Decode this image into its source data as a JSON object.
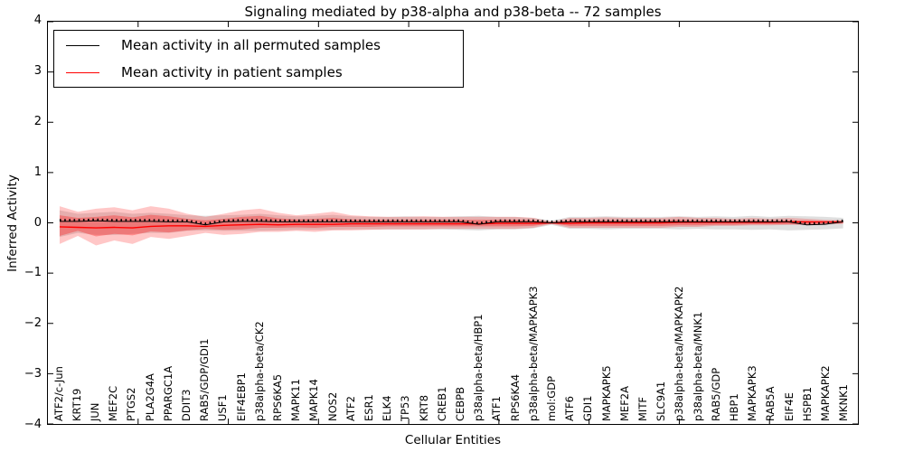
{
  "chart_data": {
    "type": "line",
    "title": "Signaling mediated by p38-alpha and p38-beta -- 72 samples",
    "xlabel": "Cellular Entities",
    "ylabel": "Inferred Activity",
    "ylim": [
      -4,
      4
    ],
    "yticks": [
      "4",
      "3",
      "2",
      "1",
      "0",
      "−1",
      "−2",
      "−3",
      "−4"
    ],
    "ytick_values": [
      4,
      3,
      2,
      1,
      0,
      -1,
      -2,
      -3,
      -4
    ],
    "grid": false,
    "legend_position": "upper left",
    "categories": [
      "ATF2/c-Jun",
      "KRT19",
      "JUN",
      "MEF2C",
      "PTGS2",
      "PLA2G4A",
      "PPARGC1A",
      "DDIT3",
      "RAB5/GDP/GDI1",
      "USF1",
      "EIF4EBP1",
      "p38alpha-beta/CK2",
      "RPS6KA5",
      "MAPK11",
      "MAPK14",
      "NOS2",
      "ATF2",
      "ESR1",
      "ELK4",
      "TP53",
      "KRT8",
      "CREB1",
      "CEBPB",
      "p38alpha-beta/HBP1",
      "ATF1",
      "RPS6KA4",
      "p38alpha-beta/MAPKAPK3",
      "mol:GDP",
      "ATF6",
      "GDI1",
      "MAPKAPK5",
      "MEF2A",
      "MITF",
      "SLC9A1",
      "p38alpha-beta/MAPKAPK2",
      "p38alpha-beta/MNK1",
      "RAB5/GDP",
      "HBP1",
      "MAPKAPK3",
      "RAB5A",
      "EIF4E",
      "HSPB1",
      "MAPKAPK2",
      "MKNK1"
    ],
    "series": [
      {
        "name": "Mean activity in all permuted samples",
        "color": "#000000",
        "values": [
          0.03,
          0.03,
          0.04,
          0.03,
          0.03,
          0.03,
          0.02,
          0.02,
          -0.04,
          0.02,
          0.03,
          0.03,
          0.02,
          0.02,
          0.02,
          0.02,
          0.02,
          0.02,
          0.02,
          0.02,
          0.02,
          0.02,
          0.02,
          -0.03,
          0.02,
          0.02,
          0.02,
          0.0,
          0.02,
          0.02,
          0.02,
          0.02,
          0.02,
          0.02,
          0.02,
          0.02,
          0.02,
          0.02,
          0.02,
          0.02,
          0.02,
          -0.04,
          -0.03,
          0.02
        ]
      },
      {
        "name": "Mean activity in patient samples",
        "color": "#ff0000",
        "values": [
          -0.08,
          -0.09,
          -0.1,
          -0.09,
          -0.1,
          -0.07,
          -0.06,
          -0.06,
          -0.07,
          -0.05,
          -0.04,
          -0.03,
          -0.04,
          -0.03,
          -0.03,
          -0.03,
          -0.02,
          -0.02,
          -0.02,
          -0.02,
          -0.02,
          -0.02,
          -0.02,
          -0.02,
          -0.01,
          -0.01,
          -0.01,
          0.0,
          -0.01,
          0.0,
          0.0,
          0.0,
          0.0,
          0.0,
          0.01,
          0.01,
          0.01,
          0.01,
          0.01,
          0.01,
          0.02,
          0.02,
          0.02,
          0.02
        ]
      }
    ],
    "bands": [
      {
        "name": "permuted-samples-spread",
        "fill": "#d9d9d9",
        "opacity": 0.85,
        "upper": [
          0.25,
          0.18,
          0.2,
          0.22,
          0.18,
          0.2,
          0.18,
          0.15,
          0.14,
          0.15,
          0.16,
          0.18,
          0.15,
          0.13,
          0.14,
          0.16,
          0.13,
          0.12,
          0.12,
          0.13,
          0.12,
          0.12,
          0.13,
          0.14,
          0.12,
          0.12,
          0.1,
          0.04,
          0.12,
          0.12,
          0.13,
          0.12,
          0.12,
          0.12,
          0.13,
          0.12,
          0.13,
          0.12,
          0.14,
          0.12,
          0.14,
          0.13,
          0.12,
          0.1
        ],
        "lower": [
          -0.28,
          -0.2,
          -0.24,
          -0.24,
          -0.22,
          -0.2,
          -0.2,
          -0.16,
          -0.15,
          -0.16,
          -0.16,
          -0.16,
          -0.15,
          -0.14,
          -0.14,
          -0.14,
          -0.13,
          -0.13,
          -0.13,
          -0.13,
          -0.13,
          -0.13,
          -0.14,
          -0.15,
          -0.13,
          -0.13,
          -0.11,
          -0.04,
          -0.12,
          -0.12,
          -0.13,
          -0.12,
          -0.12,
          -0.12,
          -0.13,
          -0.12,
          -0.13,
          -0.13,
          -0.14,
          -0.13,
          -0.15,
          -0.14,
          -0.13,
          -0.11
        ]
      },
      {
        "name": "patient-samples-outer-spread",
        "fill": "#ff0000",
        "opacity": 0.22,
        "upper": [
          0.33,
          0.22,
          0.28,
          0.31,
          0.25,
          0.33,
          0.28,
          0.18,
          0.12,
          0.18,
          0.25,
          0.28,
          0.2,
          0.15,
          0.18,
          0.22,
          0.15,
          0.13,
          0.12,
          0.12,
          0.13,
          0.12,
          0.12,
          0.12,
          0.12,
          0.12,
          0.1,
          0.02,
          0.1,
          0.1,
          0.11,
          0.1,
          0.1,
          0.1,
          0.12,
          0.1,
          0.1,
          0.08,
          0.1,
          0.08,
          0.1,
          0.08,
          0.06,
          0.05
        ],
        "lower": [
          -0.42,
          -0.26,
          -0.45,
          -0.35,
          -0.42,
          -0.28,
          -0.32,
          -0.26,
          -0.2,
          -0.24,
          -0.22,
          -0.18,
          -0.18,
          -0.16,
          -0.18,
          -0.15,
          -0.15,
          -0.14,
          -0.13,
          -0.13,
          -0.13,
          -0.12,
          -0.12,
          -0.12,
          -0.12,
          -0.12,
          -0.1,
          -0.02,
          -0.1,
          -0.1,
          -0.1,
          -0.1,
          -0.1,
          -0.1,
          -0.08,
          -0.08,
          -0.06,
          -0.06,
          -0.05,
          -0.05,
          -0.04,
          -0.04,
          -0.03,
          -0.02
        ]
      },
      {
        "name": "patient-samples-inner-spread",
        "fill": "#ff0000",
        "opacity": 0.3,
        "upper": [
          0.15,
          0.1,
          0.12,
          0.15,
          0.11,
          0.16,
          0.13,
          0.08,
          0.05,
          0.08,
          0.12,
          0.14,
          0.09,
          0.07,
          0.08,
          0.1,
          0.07,
          0.06,
          0.06,
          0.06,
          0.06,
          0.06,
          0.06,
          0.06,
          0.06,
          0.06,
          0.05,
          0.01,
          0.05,
          0.05,
          0.05,
          0.05,
          0.05,
          0.05,
          0.06,
          0.05,
          0.05,
          0.04,
          0.05,
          0.04,
          0.05,
          0.04,
          0.03,
          0.03
        ],
        "lower": [
          -0.26,
          -0.16,
          -0.27,
          -0.22,
          -0.25,
          -0.17,
          -0.19,
          -0.15,
          -0.12,
          -0.14,
          -0.13,
          -0.1,
          -0.1,
          -0.09,
          -0.1,
          -0.08,
          -0.08,
          -0.08,
          -0.07,
          -0.07,
          -0.07,
          -0.07,
          -0.07,
          -0.07,
          -0.07,
          -0.07,
          -0.06,
          -0.01,
          -0.06,
          -0.06,
          -0.06,
          -0.06,
          -0.06,
          -0.06,
          -0.05,
          -0.05,
          -0.04,
          -0.04,
          -0.03,
          -0.03,
          -0.03,
          -0.03,
          -0.02,
          -0.01
        ]
      }
    ]
  }
}
